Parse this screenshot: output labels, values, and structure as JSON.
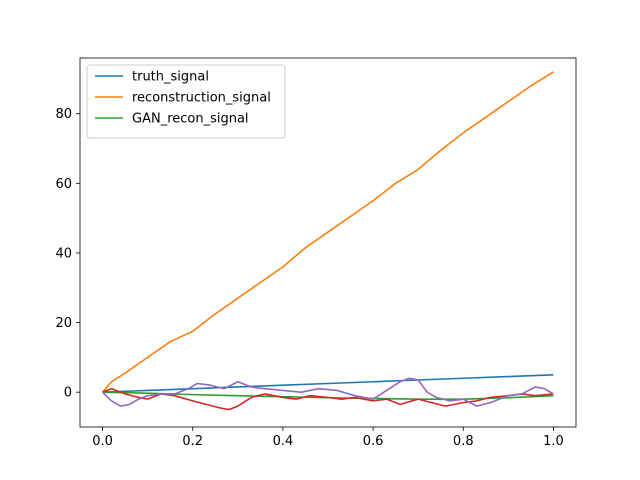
{
  "chart_data": {
    "type": "line",
    "title": "",
    "xlabel": "",
    "ylabel": "",
    "xlim": [
      -0.05,
      1.05
    ],
    "ylim": [
      -10,
      96
    ],
    "xticks": [
      0.0,
      0.2,
      0.4,
      0.6,
      0.8,
      1.0
    ],
    "xtick_labels": [
      "0.0",
      "0.2",
      "0.4",
      "0.6",
      "0.8",
      "1.0"
    ],
    "yticks": [
      0,
      20,
      40,
      60,
      80
    ],
    "ytick_labels": [
      "0",
      "20",
      "40",
      "60",
      "80"
    ],
    "grid": false,
    "legend_position": "top-left",
    "series": [
      {
        "name": "truth_signal",
        "color": "#1f77b4",
        "in_legend": true,
        "x": [
          0.0,
          0.1,
          0.2,
          0.3,
          0.4,
          0.5,
          0.6,
          0.7,
          0.8,
          0.9,
          1.0
        ],
        "y": [
          0.0,
          0.5,
          1.0,
          1.5,
          2.0,
          2.5,
          3.0,
          3.5,
          4.0,
          4.5,
          5.0
        ]
      },
      {
        "name": "reconstruction_signal",
        "color": "#ff7f0e",
        "in_legend": true,
        "x": [
          0.0,
          0.02,
          0.05,
          0.1,
          0.15,
          0.2,
          0.25,
          0.3,
          0.35,
          0.4,
          0.45,
          0.5,
          0.55,
          0.6,
          0.65,
          0.7,
          0.75,
          0.8,
          0.85,
          0.9,
          0.95,
          1.0
        ],
        "y": [
          0.0,
          3.0,
          5.5,
          10.0,
          14.5,
          17.5,
          22.5,
          27.0,
          31.5,
          36.0,
          41.5,
          46.0,
          50.5,
          55.0,
          60.0,
          64.0,
          69.5,
          74.5,
          79.0,
          83.5,
          88.0,
          92.0
        ]
      },
      {
        "name": "GAN_recon_signal",
        "color": "#2ca02c",
        "in_legend": true,
        "x": [
          0.0,
          0.1,
          0.2,
          0.3,
          0.4,
          0.5,
          0.6,
          0.7,
          0.8,
          0.9,
          1.0
        ],
        "y": [
          0.0,
          -0.3,
          -0.7,
          -1.0,
          -1.3,
          -1.6,
          -1.8,
          -2.0,
          -2.0,
          -1.6,
          -1.0
        ]
      },
      {
        "name": "",
        "color": "#d62728",
        "in_legend": false,
        "x": [
          0.0,
          0.02,
          0.05,
          0.08,
          0.1,
          0.13,
          0.16,
          0.2,
          0.23,
          0.26,
          0.28,
          0.3,
          0.33,
          0.36,
          0.4,
          0.43,
          0.46,
          0.5,
          0.53,
          0.56,
          0.6,
          0.63,
          0.66,
          0.7,
          0.73,
          0.76,
          0.8,
          0.83,
          0.86,
          0.9,
          0.93,
          0.96,
          1.0
        ],
        "y": [
          0.0,
          1.0,
          -0.5,
          -1.5,
          -2.0,
          -0.5,
          -1.0,
          -2.5,
          -3.5,
          -4.5,
          -5.0,
          -4.0,
          -1.5,
          -0.5,
          -1.5,
          -2.0,
          -1.0,
          -1.5,
          -2.0,
          -1.5,
          -2.5,
          -2.0,
          -3.5,
          -2.0,
          -3.0,
          -4.0,
          -3.0,
          -2.5,
          -1.5,
          -1.0,
          -0.5,
          -1.0,
          -0.5
        ]
      },
      {
        "name": "",
        "color": "#9467bd",
        "in_legend": false,
        "x": [
          0.0,
          0.02,
          0.04,
          0.06,
          0.08,
          0.1,
          0.13,
          0.16,
          0.19,
          0.21,
          0.24,
          0.27,
          0.3,
          0.33,
          0.36,
          0.4,
          0.44,
          0.48,
          0.52,
          0.56,
          0.6,
          0.63,
          0.66,
          0.68,
          0.7,
          0.72,
          0.74,
          0.77,
          0.8,
          0.83,
          0.86,
          0.9,
          0.93,
          0.96,
          0.98,
          1.0
        ],
        "y": [
          0.0,
          -2.5,
          -4.0,
          -3.5,
          -2.0,
          -1.0,
          -0.5,
          -0.5,
          1.0,
          2.5,
          2.0,
          1.0,
          3.0,
          1.5,
          1.0,
          0.5,
          0.0,
          1.0,
          0.5,
          -1.0,
          -2.0,
          0.5,
          3.0,
          4.0,
          3.5,
          0.0,
          -1.5,
          -2.5,
          -2.0,
          -4.0,
          -3.0,
          -1.0,
          -0.5,
          1.5,
          1.0,
          -0.5
        ]
      }
    ]
  }
}
